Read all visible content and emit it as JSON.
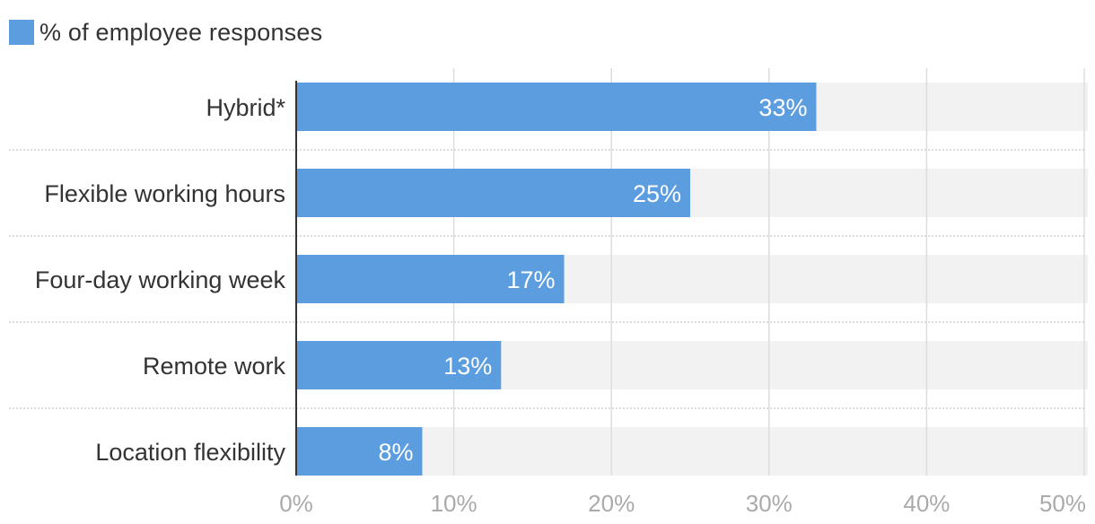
{
  "legend": {
    "label": "% of employee responses",
    "color": "#5b9ddf"
  },
  "chart_data": {
    "type": "bar",
    "orientation": "horizontal",
    "categories": [
      "Hybrid*",
      "Flexible working hours",
      "Four-day working week",
      "Remote work",
      "Location flexibility"
    ],
    "series": [
      {
        "name": "% of employee responses",
        "values": [
          33,
          25,
          17,
          13,
          8
        ]
      }
    ],
    "value_labels": [
      "33%",
      "25%",
      "17%",
      "13%",
      "8%"
    ],
    "xlim": [
      0,
      50
    ],
    "x_ticks": [
      0,
      10,
      20,
      30,
      40,
      50
    ],
    "x_tick_labels": [
      "0%",
      "10%",
      "20%",
      "30%",
      "40%",
      "50%"
    ],
    "grid": true,
    "legend_position": "top-left",
    "colors": {
      "bar": "#5b9ddf",
      "track": "#f2f2f2",
      "grid": "#dddddd",
      "separator": "#bbbbbb",
      "axis": "#333333"
    }
  }
}
